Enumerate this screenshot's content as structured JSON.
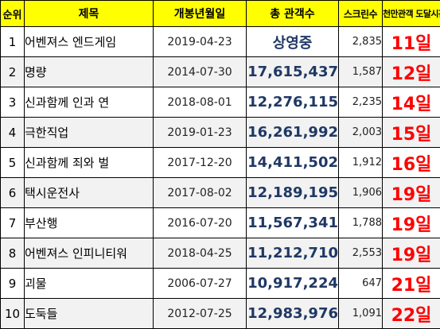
{
  "colors": {
    "header_bg": "#ffff00",
    "alt_row_bg": "#f2f2f2",
    "total_text": "#1f3864",
    "days_text": "#ff0000"
  },
  "headers": {
    "rank": "순위",
    "title": "제목",
    "release_date": "개봉년월일",
    "total_audience": "총 관객수",
    "screens": "스크린수",
    "days_to_10m": "천만관객 도달시간"
  },
  "rows": [
    {
      "rank": "1",
      "title": "어벤져스 엔드게임",
      "release_date": "2019-04-23",
      "total_audience": "상영중",
      "screens": "2,835",
      "days_to_10m": "11일"
    },
    {
      "rank": "2",
      "title": "명량",
      "release_date": "2014-07-30",
      "total_audience": "17,615,437",
      "screens": "1,587",
      "days_to_10m": "12일"
    },
    {
      "rank": "3",
      "title": "신과함께 인과 연",
      "release_date": "2018-08-01",
      "total_audience": "12,276,115",
      "screens": "2,235",
      "days_to_10m": "14일"
    },
    {
      "rank": "4",
      "title": "극한직업",
      "release_date": "2019-01-23",
      "total_audience": "16,261,992",
      "screens": "2,003",
      "days_to_10m": "15일"
    },
    {
      "rank": "5",
      "title": "신과함께 죄와 벌",
      "release_date": "2017-12-20",
      "total_audience": "14,411,502",
      "screens": "1,912",
      "days_to_10m": "16일"
    },
    {
      "rank": "6",
      "title": "택시운전사",
      "release_date": "2017-08-02",
      "total_audience": "12,189,195",
      "screens": "1,906",
      "days_to_10m": "19일"
    },
    {
      "rank": "7",
      "title": "부산행",
      "release_date": "2016-07-20",
      "total_audience": "11,567,341",
      "screens": "1,788",
      "days_to_10m": "19일"
    },
    {
      "rank": "8",
      "title": "어벤져스 인피니티워",
      "release_date": "2018-04-25",
      "total_audience": "11,212,710",
      "screens": "2,553",
      "days_to_10m": "19일"
    },
    {
      "rank": "9",
      "title": "괴물",
      "release_date": "2006-07-27",
      "total_audience": "10,917,224",
      "screens": "647",
      "days_to_10m": "21일"
    },
    {
      "rank": "10",
      "title": "도둑들",
      "release_date": "2012-07-25",
      "total_audience": "12,983,976",
      "screens": "1,091",
      "days_to_10m": "22일"
    }
  ]
}
